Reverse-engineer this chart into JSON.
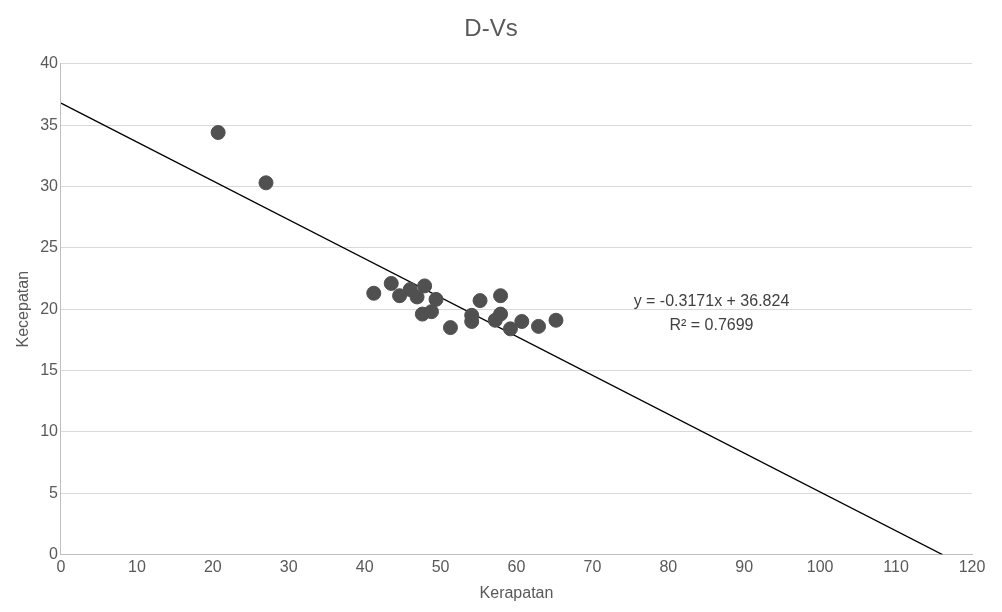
{
  "chart_data": {
    "type": "scatter",
    "title": "D-Vs",
    "xlabel": "Kerapatan",
    "ylabel": "Kecepatan",
    "xlim": [
      0,
      120
    ],
    "xticks": [
      0,
      10,
      20,
      30,
      40,
      50,
      60,
      70,
      80,
      90,
      100,
      110,
      120
    ],
    "ylim": [
      0,
      40
    ],
    "yticks": [
      0,
      5,
      10,
      15,
      20,
      25,
      30,
      35,
      40
    ],
    "grid": "y",
    "legend": false,
    "annotations": [
      "y = -0.3171x + 36.824",
      "R² = 0.7699"
    ],
    "series": [
      {
        "type": "scatter",
        "marker": "circle",
        "color": "#505050",
        "x": [
          20.7,
          27.0,
          41.2,
          43.5,
          44.6,
          46.0,
          46.9,
          47.9,
          49.4,
          47.6,
          48.8,
          51.3,
          54.1,
          54.1,
          55.2,
          57.9,
          57.9,
          57.2,
          59.2,
          60.7,
          62.9,
          65.2
        ],
        "values": [
          34.4,
          30.3,
          21.3,
          22.1,
          21.1,
          21.6,
          21.0,
          21.9,
          20.8,
          19.6,
          19.8,
          18.5,
          19.5,
          19.0,
          20.7,
          21.1,
          19.6,
          19.1,
          18.4,
          19.0,
          18.6,
          19.1
        ]
      },
      {
        "type": "line",
        "marker": "none",
        "color": "#000000",
        "x": [
          0,
          116.1
        ],
        "values": [
          36.8,
          0
        ]
      }
    ]
  }
}
